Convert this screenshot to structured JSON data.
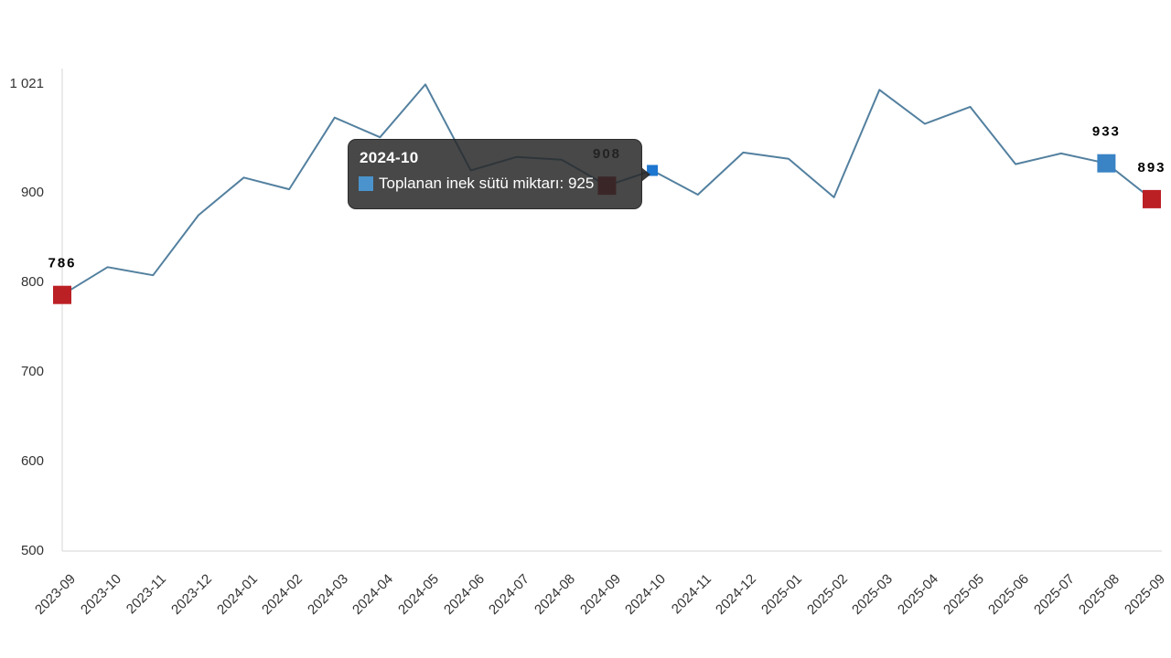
{
  "chart_data": {
    "type": "line",
    "title": "",
    "xlabel": "",
    "ylabel": "",
    "ylim": [
      500,
      1021
    ],
    "grid": false,
    "legend": "none",
    "x": [
      "2023-09",
      "2023-10",
      "2023-11",
      "2023-12",
      "2024-01",
      "2024-02",
      "2024-03",
      "2024-04",
      "2024-05",
      "2024-06",
      "2024-07",
      "2024-08",
      "2024-09",
      "2024-10",
      "2024-11",
      "2024-12",
      "2025-01",
      "2025-02",
      "2025-03",
      "2025-04",
      "2025-05",
      "2025-06",
      "2025-07",
      "2025-08",
      "2025-09"
    ],
    "series": [
      {
        "name": "Toplanan inek sütü miktarı",
        "values": [
          786,
          817,
          808,
          875,
          917,
          904,
          984,
          962,
          1021,
          925,
          940,
          937,
          908,
          925,
          898,
          945,
          938,
          895,
          1015,
          977,
          996,
          932,
          944,
          933,
          893
        ]
      }
    ],
    "y_ticks": [
      {
        "value": 1021,
        "label": "1 021"
      },
      {
        "value": 900,
        "label": "900"
      },
      {
        "value": 800,
        "label": "800"
      },
      {
        "value": 700,
        "label": "700"
      },
      {
        "value": 600,
        "label": "600"
      },
      {
        "value": 500,
        "label": "500"
      }
    ],
    "highlight_points": [
      {
        "index": 0,
        "label": "786",
        "marker": "red",
        "size": "large"
      },
      {
        "index": 12,
        "label": "908",
        "marker": "dark_red",
        "size": "large"
      },
      {
        "index": 13,
        "label": "",
        "marker": "bright_blue",
        "size": "small"
      },
      {
        "index": 23,
        "label": "933",
        "marker": "blue",
        "size": "large"
      },
      {
        "index": 24,
        "label": "893",
        "marker": "red",
        "size": "large"
      }
    ]
  },
  "tooltip": {
    "title": "2024-10",
    "series_label": "Toplanan inek sütü miktarı",
    "value": "925",
    "text": "Toplanan inek sütü miktarı: 925"
  },
  "colors": {
    "line": "#53809f",
    "red": "#bb2025",
    "dark_red": "#a91e23",
    "blue": "#3a83c4",
    "bright_blue": "#1d76cf",
    "axis": "#d6d6d6",
    "tick_text": "#333333",
    "point_label": "#000000",
    "tooltip_bg": "rgba(40,40,40,0.85)",
    "tooltip_swatch": "#4a93cc"
  }
}
